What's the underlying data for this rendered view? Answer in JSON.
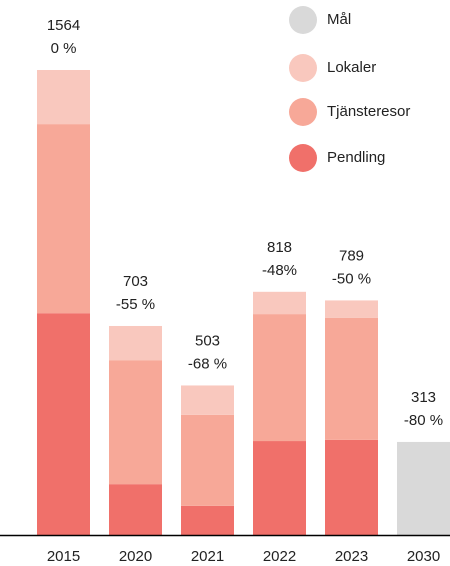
{
  "chart_data": {
    "type": "stacked_bar",
    "categories": [
      "2015",
      "2020",
      "2021",
      "2022",
      "2023",
      "2030"
    ],
    "series": [
      {
        "name": "Pendling",
        "color": "#f0706a",
        "values": [
          746,
          171,
          98,
          316,
          320,
          null
        ]
      },
      {
        "name": "Tjänsteresor",
        "color": "#f7a898",
        "values": [
          636,
          417,
          306,
          427,
          410,
          null
        ]
      },
      {
        "name": "Lokaler",
        "color": "#f9c8be",
        "values": [
          182,
          115,
          99,
          75,
          59,
          null
        ]
      },
      {
        "name": "Mål",
        "color": "#d9d9d9",
        "values": [
          null,
          null,
          null,
          null,
          null,
          313
        ]
      }
    ],
    "totals": [
      1564,
      703,
      503,
      818,
      789,
      313
    ],
    "change_labels": [
      "0 %",
      "-55 %",
      "-68 %",
      "-48%",
      "-50 %",
      "-80 %"
    ]
  }
}
